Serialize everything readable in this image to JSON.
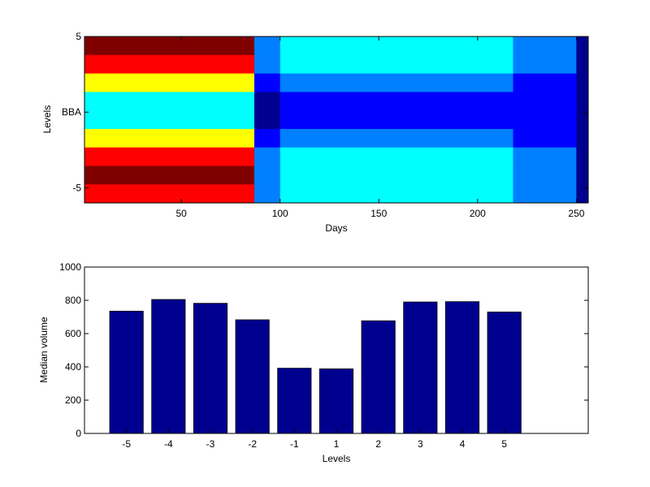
{
  "chart_data": [
    {
      "type": "heatmap",
      "xlabel": "Days",
      "ylabel": "Levels",
      "xlim": [
        1,
        256
      ],
      "ylim": [
        -6,
        5
      ],
      "x_ticks": [
        "50",
        "100",
        "150",
        "200",
        "250"
      ],
      "x_tick_values": [
        50,
        100,
        150,
        200,
        250
      ],
      "y_ticks": [
        "5",
        "BBA",
        "-5"
      ],
      "y_tick_values": [
        5,
        0,
        -5
      ],
      "colormap": "jet",
      "colors": [
        "#00008f",
        "#0000ff",
        "#0080ff",
        "#00ffff",
        "#80ff80",
        "#ffff00",
        "#ff8000",
        "#ff0000",
        "#800000"
      ],
      "segments": [
        {
          "x_start": 1,
          "x_end": 87,
          "rows": [
            8,
            7,
            5,
            3,
            3,
            5,
            7,
            8,
            7
          ]
        },
        {
          "x_start": 87,
          "x_end": 100,
          "rows": [
            2,
            2,
            1,
            0,
            0,
            1,
            2,
            2,
            2
          ]
        },
        {
          "x_start": 100,
          "x_end": 218,
          "rows": [
            3,
            3,
            2,
            1,
            1,
            2,
            3,
            3,
            3
          ]
        },
        {
          "x_start": 218,
          "x_end": 250,
          "rows": [
            2,
            2,
            1,
            1,
            1,
            1,
            2,
            2,
            2
          ]
        },
        {
          "x_start": 250,
          "x_end": 256,
          "rows": [
            0,
            0,
            0,
            0,
            0,
            0,
            0,
            0,
            0
          ]
        }
      ]
    },
    {
      "type": "bar",
      "title": "",
      "xlabel": "Levels",
      "ylabel": "Median volume",
      "categories": [
        "-5",
        "-4",
        "-3",
        "-2",
        "-1",
        "1",
        "2",
        "3",
        "4",
        "5"
      ],
      "values": [
        735,
        805,
        782,
        683,
        392,
        388,
        677,
        790,
        792,
        730
      ],
      "ylim": [
        0,
        1000
      ],
      "y_ticks": [
        "0",
        "200",
        "400",
        "600",
        "800",
        "1000"
      ],
      "y_tick_values": [
        0,
        200,
        400,
        600,
        800,
        1000
      ],
      "bar_color": "#00008f"
    }
  ]
}
